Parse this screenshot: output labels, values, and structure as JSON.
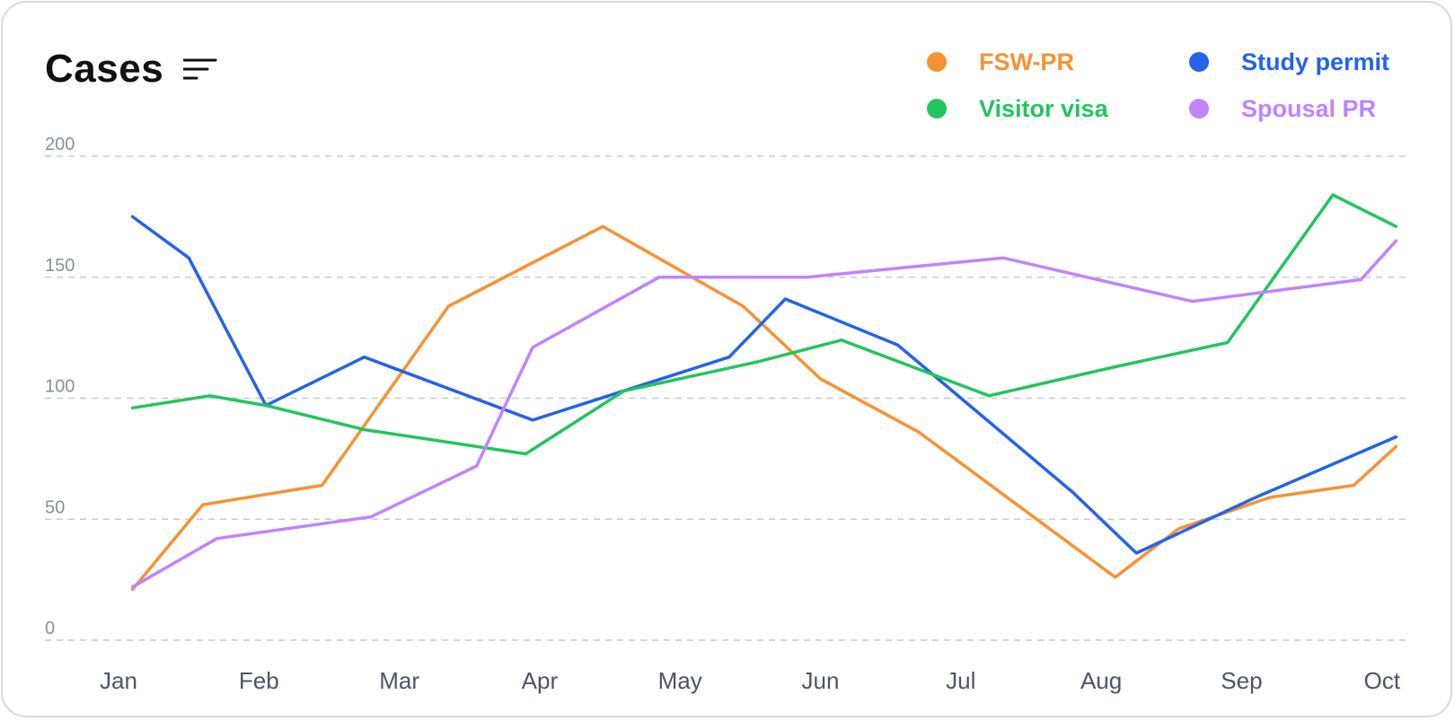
{
  "header": {
    "title": "Cases",
    "filter_icon": "sort-lines-icon"
  },
  "colors": {
    "grid": "#c9ccd2",
    "background": "#ffffff"
  },
  "chart_data": {
    "type": "line",
    "title": "Cases",
    "grid": true,
    "legend_position": "top-right",
    "ylim": [
      0,
      200
    ],
    "yticks": [
      0,
      50,
      100,
      150,
      200
    ],
    "x_labels": [
      "Jan",
      "Feb",
      "Mar",
      "Apr",
      "May",
      "Jun",
      "Jul",
      "Aug",
      "Sep",
      "Oct"
    ],
    "x_range": [
      0,
      9.3
    ],
    "series": [
      {
        "name": "FSW-PR",
        "color": "#f79233",
        "points": [
          [
            0.1,
            21
          ],
          [
            0.6,
            56
          ],
          [
            1.45,
            64
          ],
          [
            2.35,
            138
          ],
          [
            3.45,
            171
          ],
          [
            4.45,
            138
          ],
          [
            5.0,
            108
          ],
          [
            5.7,
            86
          ],
          [
            7.1,
            26
          ],
          [
            7.55,
            46
          ],
          [
            8.2,
            59
          ],
          [
            8.8,
            64
          ],
          [
            9.1,
            80
          ]
        ]
      },
      {
        "name": "Study permit",
        "color": "#2563eb",
        "points": [
          [
            0.1,
            175
          ],
          [
            0.5,
            158
          ],
          [
            1.05,
            97
          ],
          [
            1.75,
            117
          ],
          [
            2.95,
            91
          ],
          [
            4.35,
            117
          ],
          [
            4.75,
            141
          ],
          [
            5.55,
            122
          ],
          [
            6.8,
            61
          ],
          [
            7.25,
            36
          ],
          [
            8.1,
            59
          ],
          [
            9.1,
            84
          ]
        ]
      },
      {
        "name": "Visitor visa",
        "color": "#22c55e",
        "points": [
          [
            0.1,
            96
          ],
          [
            0.65,
            101
          ],
          [
            1.05,
            97
          ],
          [
            1.75,
            87
          ],
          [
            2.9,
            77
          ],
          [
            3.6,
            103
          ],
          [
            4.55,
            115
          ],
          [
            5.15,
            124
          ],
          [
            6.2,
            101
          ],
          [
            7.1,
            113
          ],
          [
            7.9,
            123
          ],
          [
            8.65,
            184
          ],
          [
            9.1,
            171
          ]
        ]
      },
      {
        "name": "Spousal PR",
        "color": "#c084fc",
        "points": [
          [
            0.1,
            22
          ],
          [
            0.7,
            42
          ],
          [
            1.8,
            51
          ],
          [
            2.55,
            72
          ],
          [
            2.95,
            121
          ],
          [
            3.85,
            150
          ],
          [
            4.9,
            150
          ],
          [
            6.3,
            158
          ],
          [
            7.65,
            140
          ],
          [
            8.85,
            149
          ],
          [
            9.1,
            165
          ]
        ]
      }
    ]
  }
}
